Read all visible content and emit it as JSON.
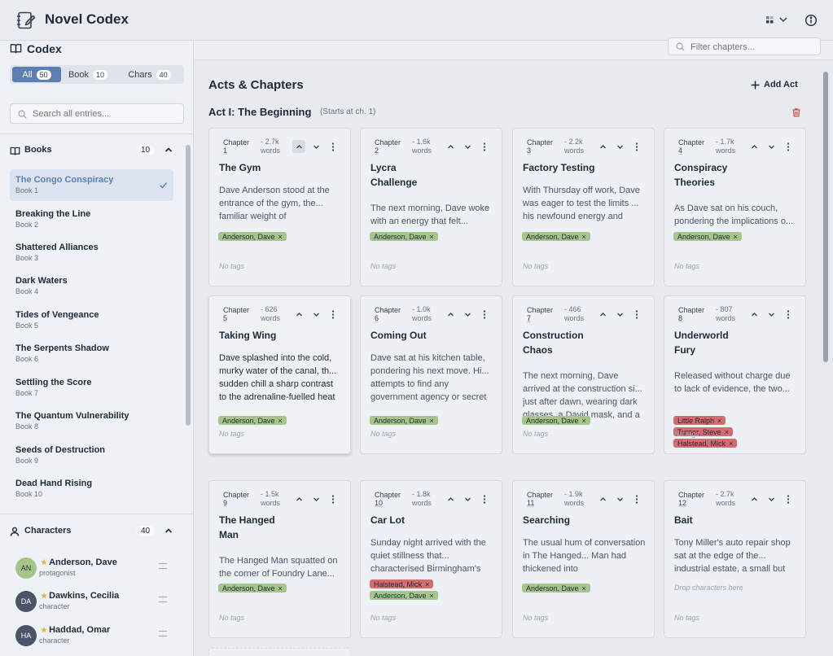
{
  "app": {
    "title": "Novel Codex"
  },
  "header": {
    "layout_icon": "grid-icon",
    "info_icon": "info-icon"
  },
  "sidebar": {
    "title": "Codex",
    "segments": [
      {
        "label": "All",
        "count": "50",
        "active": true
      },
      {
        "label": "Book",
        "count": "10",
        "active": false
      },
      {
        "label": "Chars",
        "count": "40",
        "active": false
      }
    ],
    "search_placeholder": "Search all entries...",
    "books_section": {
      "title": "Books",
      "count": "10"
    },
    "books": [
      {
        "title": "The Congo Conspiracy",
        "sub": "Book 1",
        "selected": true
      },
      {
        "title": "Breaking the Line",
        "sub": "Book 2"
      },
      {
        "title": "Shattered Alliances",
        "sub": "Book 3"
      },
      {
        "title": "Dark Waters",
        "sub": "Book 4"
      },
      {
        "title": "Tides of Vengeance",
        "sub": "Book 5"
      },
      {
        "title": "The Serpents Shadow",
        "sub": "Book 6"
      },
      {
        "title": "Settling the Score",
        "sub": "Book 7"
      },
      {
        "title": "The Quantum Vulnerability",
        "sub": "Book 8"
      },
      {
        "title": "Seeds of Destruction",
        "sub": "Book 9"
      },
      {
        "title": "Dead Hand Rising",
        "sub": "Book 10"
      }
    ],
    "characters_section": {
      "title": "Characters",
      "count": "40"
    },
    "characters": [
      {
        "initials": "AN",
        "name": "Anderson, Dave",
        "role": "protagonist",
        "avatar_bg": "#a5c58a",
        "avatar_fg": "#2d3b22"
      },
      {
        "initials": "DA",
        "name": "Dawkins, Cecilia",
        "role": "character",
        "avatar_bg": "#4a5568",
        "avatar_fg": "#ffffff"
      },
      {
        "initials": "HA",
        "name": "Haddad, Omar",
        "role": "character",
        "avatar_bg": "#4a5568",
        "avatar_fg": "#ffffff"
      }
    ]
  },
  "main": {
    "filter_placeholder": "Filter chapters...",
    "title": "Acts & Chapters",
    "add_act_label": "Add Act",
    "act": {
      "title": "Act I: The Beginning",
      "sub": "(Starts at ch. 1)"
    },
    "no_tags_label": "No tags",
    "drop_label": "Drop characters here",
    "chapters": [
      {
        "label_top": "Chapter",
        "num": "1",
        "words_top": "- 2.7k",
        "words_bottom": "words",
        "title_lines": [
          "The Gym"
        ],
        "desc": "Dave Anderson stood at the entrance of the gym, the... familiar weight of",
        "tags": [
          {
            "name": "Anderson, Dave",
            "color": "green"
          }
        ]
      },
      {
        "label_top": "Chapter",
        "num": "2",
        "words_top": "- 1.6k",
        "words_bottom": "words",
        "title_lines": [
          "Lycra",
          "Challenge"
        ],
        "desc": "The next morning, Dave woke with an energy that felt...",
        "tags": [
          {
            "name": "Anderson, Dave",
            "color": "green"
          }
        ]
      },
      {
        "label_top": "Chapter",
        "num": "3",
        "words_top": "- 2.2k",
        "words_bottom": "words",
        "title_lines": [
          "Factory Testing"
        ],
        "desc": "With Thursday off work, Dave was eager to test the limits ... his newfound energy and",
        "tags": [
          {
            "name": "Anderson, Dave",
            "color": "green"
          }
        ]
      },
      {
        "label_top": "Chapter",
        "num": "4",
        "words_top": "- 1.7k",
        "words_bottom": "words",
        "title_lines": [
          "Conspiracy",
          "Theories"
        ],
        "desc": "As Dave sat on his couch, pondering the implications o...",
        "tags": [
          {
            "name": "Anderson, Dave",
            "color": "green"
          }
        ]
      },
      {
        "label_top": "Chapter",
        "num": "5",
        "words_top": "- 626",
        "words_bottom": "words",
        "title_lines": [
          "Taking Wing"
        ],
        "desc": "Dave splashed into the cold, murky water of the canal, th... sudden chill a sharp contrast to the adrenaline-fuelled heat that had filled",
        "tags": [
          {
            "name": "Anderson, Dave",
            "color": "green"
          }
        ]
      },
      {
        "label_top": "Chapter",
        "num": "6",
        "words_top": "- 1.0k",
        "words_bottom": "words",
        "title_lines": [
          "Coming Out"
        ],
        "desc": "Dave sat at his kitchen table, pondering his next move. Hi... attempts to find any government agency or secret organisation that dealt wit",
        "tags": [
          {
            "name": "Anderson, Dave",
            "color": "green"
          }
        ]
      },
      {
        "label_top": "Chapter",
        "num": "7",
        "words_top": "- 466",
        "words_bottom": "words",
        "title_lines": [
          "Construction",
          "Chaos"
        ],
        "desc": "The next morning, Dave arrived at the construction si... just after dawn, wearing dark glasses, a David mask, and a",
        "tags": [
          {
            "name": "Anderson, Dave",
            "color": "green"
          }
        ]
      },
      {
        "label_top": "Chapter",
        "num": "8",
        "words_top": "- 807",
        "words_bottom": "words",
        "title_lines": [
          "Underworld",
          "Fury"
        ],
        "desc": "Released without charge due to lack of evidence, the two...",
        "tags": [
          {
            "name": "Little Ralph",
            "color": "red"
          },
          {
            "name": "Turner, Steve",
            "color": "red"
          },
          {
            "name": "Halstead, Mick",
            "color": "red"
          }
        ]
      },
      {
        "label_top": "Chapter",
        "num": "9",
        "words_top": "- 1.5k",
        "words_bottom": "words",
        "title_lines": [
          "The Hanged",
          "Man"
        ],
        "desc": "The Hanged Man squatted on the corner of Foundry Lane...",
        "tags": [
          {
            "name": "Anderson, Dave",
            "color": "green"
          }
        ]
      },
      {
        "label_top": "Chapter",
        "num": "10",
        "words_top": "- 1.8k",
        "words_bottom": "words",
        "title_lines": [
          "Car Lot"
        ],
        "desc": "Sunday night arrived with the quiet stillness that... characterised Birmingham's",
        "tags": [
          {
            "name": "Halstead, Mick",
            "color": "red"
          },
          {
            "name": "Anderson, Dave",
            "color": "green"
          }
        ]
      },
      {
        "label_top": "Chapter",
        "num": "11",
        "words_top": "- 1.9k",
        "words_bottom": "words",
        "title_lines": [
          "Searching"
        ],
        "desc": "The usual hum of conversation in The Hanged... Man had thickened into",
        "tags": [
          {
            "name": "Anderson, Dave",
            "color": "green"
          }
        ]
      },
      {
        "label_top": "Chapter",
        "num": "12",
        "words_top": "- 2.7k",
        "words_bottom": "words",
        "title_lines": [
          "Bait"
        ],
        "desc": "Tony Miller's auto repair shop sat at the edge of the... industrial estate, a small but",
        "tags": []
      }
    ]
  },
  "colors": {
    "accent": "#5b7fb3",
    "tag_green": "#a5c58a",
    "tag_red": "#d46b6f",
    "trash": "#d9534f",
    "star": "#e4b34a"
  }
}
